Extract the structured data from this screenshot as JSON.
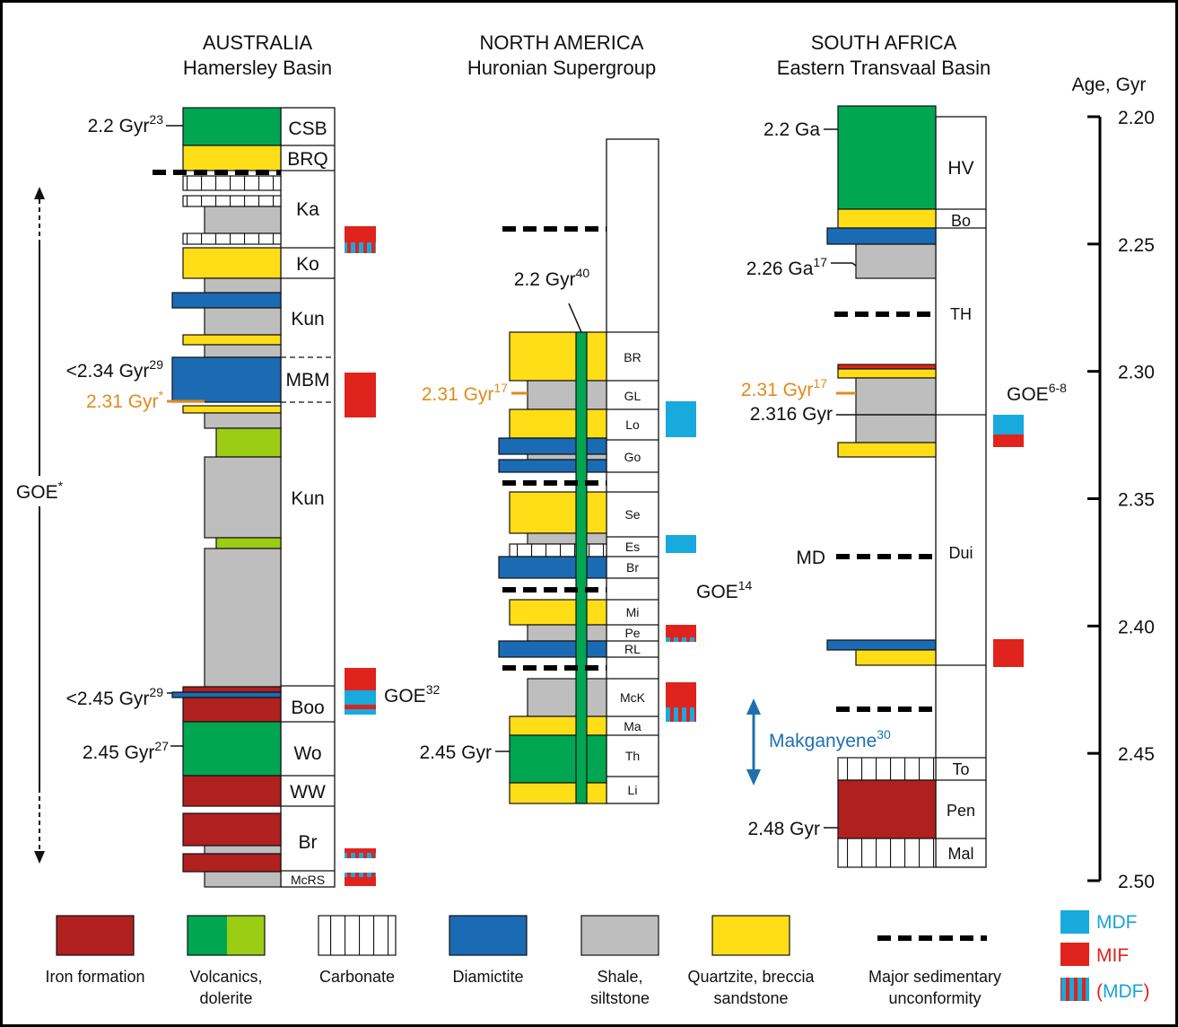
{
  "colors": {
    "iron": "#B0201E",
    "volcanic": "#00A651",
    "dolerite": "#9ACD14",
    "diamictite": "#1B6BB4",
    "shale": "#BEBEBE",
    "quartzite": "#FFDE17",
    "mdf": "#18A9DD",
    "mif": "#E0231C",
    "orange": "#E28A1C",
    "makganyene": "#1F6FB0"
  },
  "australia": {
    "title": "AUSTRALIA",
    "subtitle": "Hamersley Basin",
    "units": [
      "CSB",
      "BRQ",
      "Ka",
      "Ko",
      "Kun",
      "MBM",
      "Kun",
      "Boo",
      "Wo",
      "WW",
      "Br",
      "McRS"
    ],
    "ages": {
      "a1": "2.2 Gyr",
      "a1_ref": "23",
      "a2": "<2.34 Gyr",
      "a2_ref": "29",
      "a3": "2.31 Gyr",
      "a3_ref": "*",
      "a4": "<2.45 Gyr",
      "a4_ref": "29",
      "a5": "2.45 Gyr",
      "a5_ref": "27"
    },
    "goe_left": "GOE",
    "goe_left_ref": "*",
    "goe_right": "GOE",
    "goe_right_ref": "32"
  },
  "north_america": {
    "title": "NORTH AMERICA",
    "subtitle": "Huronian Supergroup",
    "units": [
      "BR",
      "GL",
      "Lo",
      "Go",
      "Se",
      "Es",
      "Br",
      "Mi",
      "Pe",
      "RL",
      "McK",
      "Ma",
      "Th",
      "Li"
    ],
    "ages": {
      "a1": "2.2 Gyr",
      "a1_ref": "40",
      "a2": "2.31 Gyr",
      "a2_ref": "17",
      "a3": "2.45 Gyr"
    },
    "goe": "GOE",
    "goe_ref": "14"
  },
  "south_africa": {
    "title": "SOUTH AFRICA",
    "subtitle": "Eastern Transvaal Basin",
    "units": [
      "HV",
      "Bo",
      "TH",
      "Dui",
      "To",
      "Pen",
      "Mal"
    ],
    "ages": {
      "a1": "2.2 Ga",
      "a2": "2.26 Ga",
      "a2_ref": "17",
      "a3": "2.31 Gyr",
      "a3_ref": "17",
      "a4": "2.316 Gyr",
      "a5": "MD",
      "a6": "2.48 Gyr"
    },
    "makganyene": "Makganyene",
    "makganyene_ref": "30",
    "goe": "GOE",
    "goe_ref": "6-8"
  },
  "age_axis": {
    "title": "Age, Gyr",
    "ticks": [
      "2.20",
      "2.25",
      "2.30",
      "2.35",
      "2.40",
      "2.45",
      "2.50"
    ]
  },
  "legend": {
    "iron": "Iron formation",
    "volcanic_l1": "Volcanics,",
    "volcanic_l2": "dolerite",
    "carbonate": "Carbonate",
    "diamictite": "Diamictite",
    "shale_l1": "Shale,",
    "shale_l2": "siltstone",
    "quartz_l1": "Quartzite, breccia",
    "quartz_l2": "sandstone",
    "unconf_l1": "Major sedimentary",
    "unconf_l2": "unconformity",
    "mdf": "MDF",
    "mif": "MIF",
    "mdf_paren": "(MDF)"
  }
}
